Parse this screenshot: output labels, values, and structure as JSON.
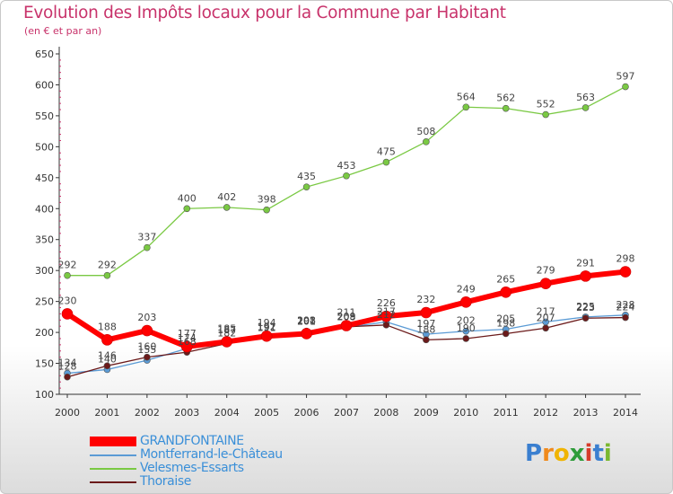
{
  "title": "Evolution des Impôts locaux pour la Commune par Habitant",
  "subtitle": "(en € et par an)",
  "logo": "Proxiti",
  "chart_data": {
    "type": "line",
    "x": [
      2000,
      2001,
      2002,
      2003,
      2004,
      2005,
      2006,
      2007,
      2008,
      2009,
      2010,
      2011,
      2012,
      2013,
      2014
    ],
    "ylim": [
      100,
      650
    ],
    "yticks": [
      100,
      150,
      200,
      250,
      300,
      350,
      400,
      450,
      500,
      550,
      600,
      650
    ],
    "grid": false,
    "legend_position": "bottom-left",
    "series": [
      {
        "name": "GRANDFONTAINE",
        "color": "#ff0000",
        "values": [
          230,
          188,
          203,
          177,
          185,
          194,
          198,
          211,
          226,
          232,
          249,
          265,
          279,
          291,
          298
        ]
      },
      {
        "name": "Montferrand-le-Château",
        "color": "#5b9bd5",
        "values": [
          134,
          140,
          155,
          174,
          187,
          191,
          201,
          208,
          217,
          197,
          202,
          205,
          217,
          225,
          228
        ]
      },
      {
        "name": "Velesmes-Essarts",
        "color": "#7ac943",
        "values": [
          292,
          292,
          337,
          400,
          402,
          398,
          435,
          453,
          475,
          508,
          564,
          562,
          552,
          563,
          597
        ]
      },
      {
        "name": "Thoraise",
        "color": "#6b1a1a",
        "values": [
          128,
          146,
          160,
          168,
          182,
          192,
          202,
          209,
          212,
          188,
          190,
          198,
          207,
          223,
          224
        ]
      }
    ]
  }
}
